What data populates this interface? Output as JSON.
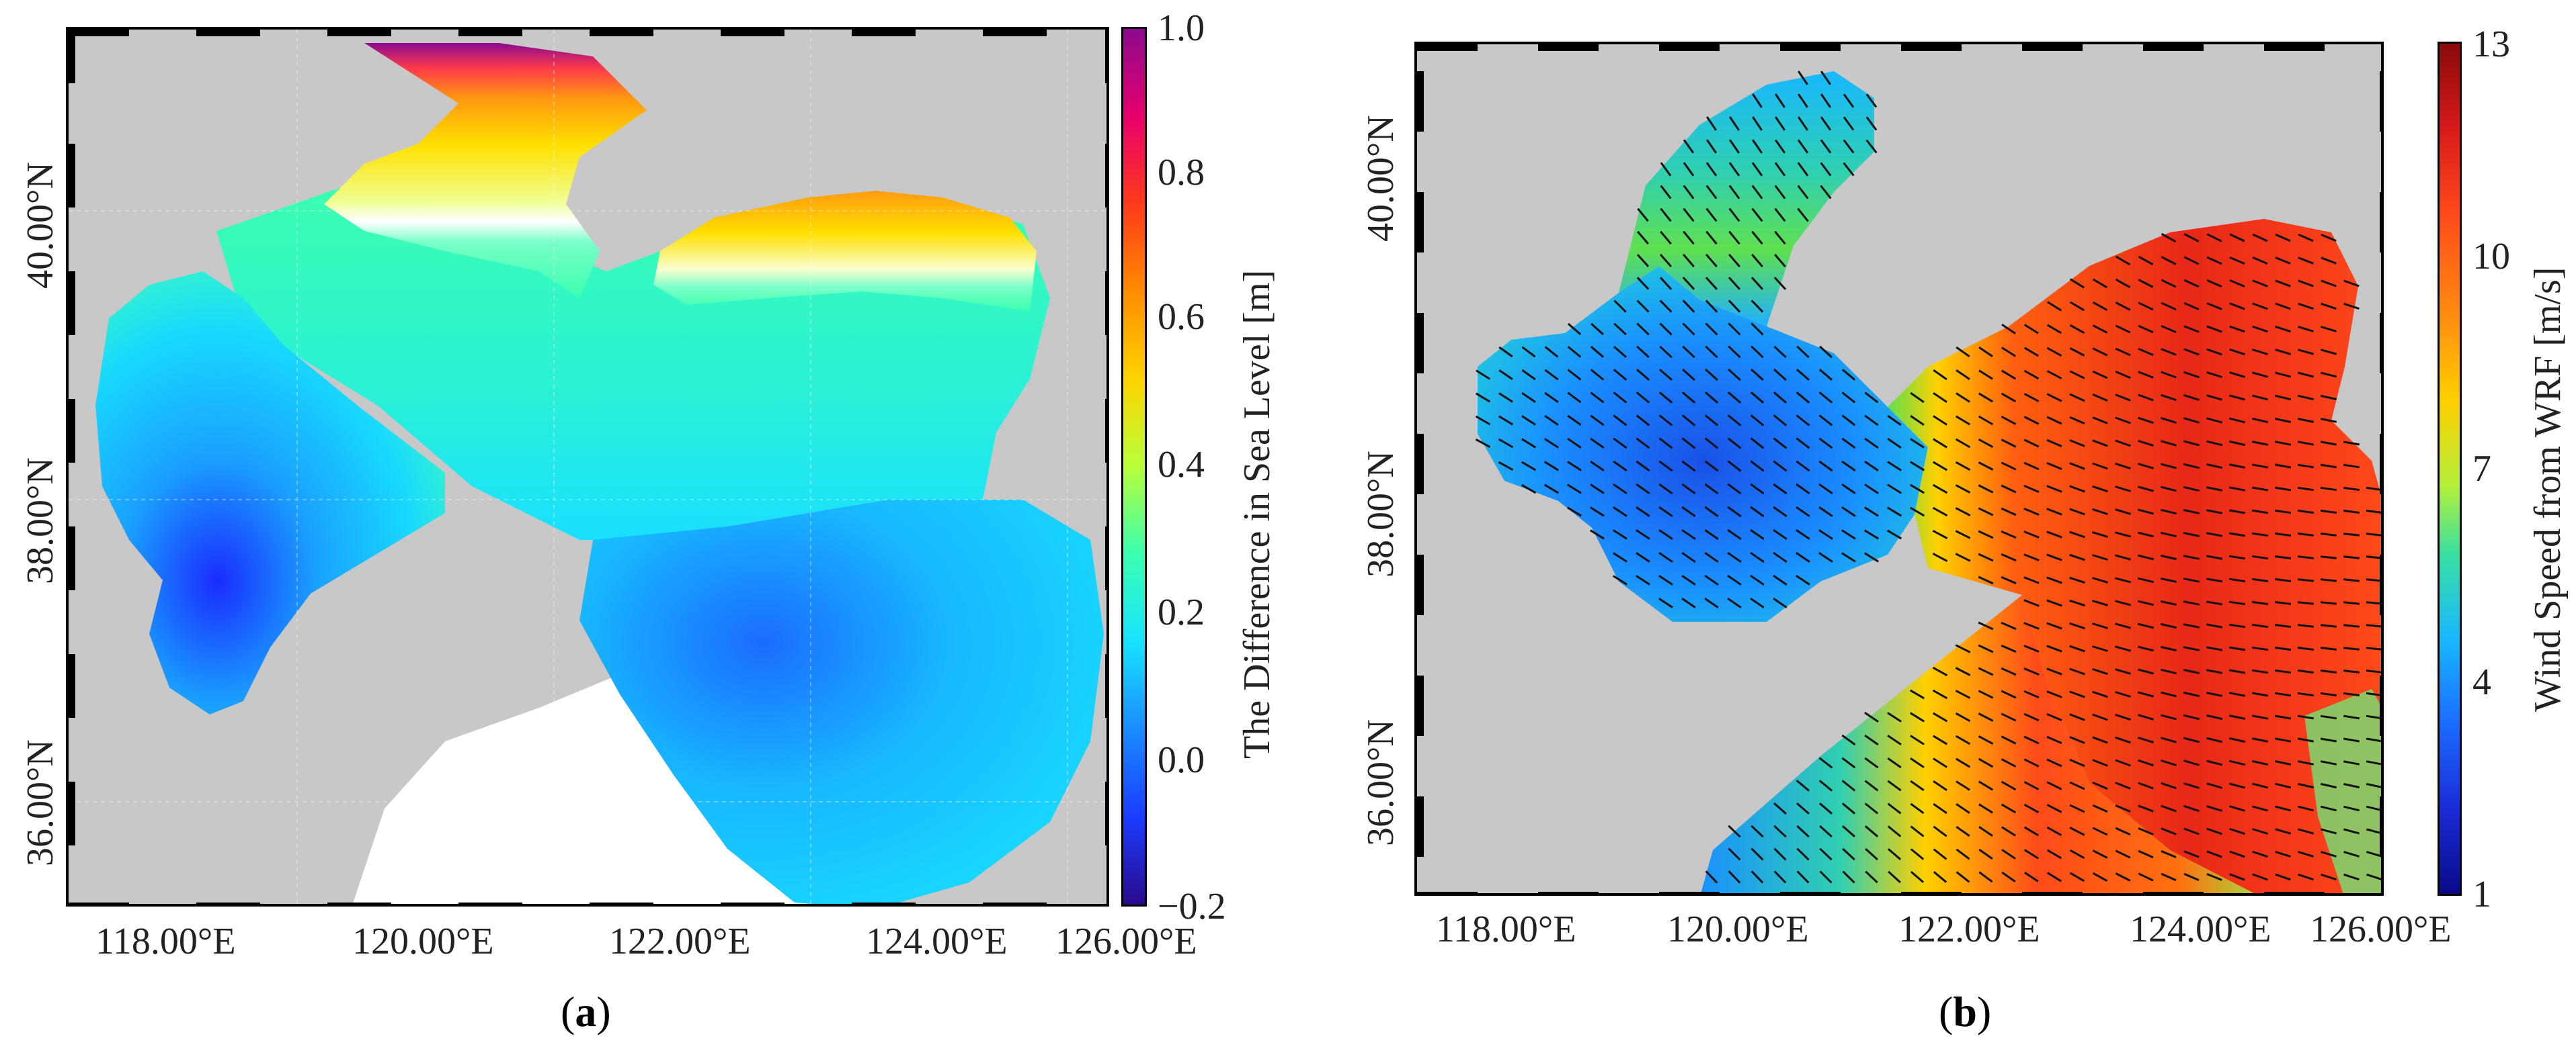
{
  "panel_a": {
    "caption_open": "(",
    "caption_letter": "a",
    "caption_close": ")",
    "lon_labels": [
      "118.00°E",
      "120.00°E",
      "122.00°E",
      "124.00°E",
      "126.00°E"
    ],
    "lat_labels": [
      "40.00°N",
      "38.00°N",
      "36.00°N"
    ],
    "colorbar": {
      "title": "The Difference in Sea Level [m]",
      "ticks": [
        "1.0",
        "0.8",
        "0.6",
        "0.4",
        "0.2",
        "0.0",
        "−0.2"
      ],
      "colors": [
        "#8b0a8e",
        "#e8006c",
        "#ff3a1a",
        "#ff8c00",
        "#ffd400",
        "#b7ff3a",
        "#3affb0",
        "#18e3ff",
        "#1a8cff",
        "#1a3cff",
        "#2a0a8c"
      ]
    }
  },
  "panel_b": {
    "caption_open": "(",
    "caption_letter": "b",
    "caption_close": ")",
    "lon_labels": [
      "118.00°E",
      "120.00°E",
      "122.00°E",
      "124.00°E",
      "126.00°E"
    ],
    "lat_labels": [
      "40.00°N",
      "38.00°N",
      "36.00°N"
    ],
    "colorbar": {
      "title": "Wind Speed from WRF [m/s]",
      "ticks": [
        "13",
        "10",
        "7",
        "4",
        "1"
      ],
      "colors": [
        "#8a0a0a",
        "#d81a1a",
        "#ff4a1a",
        "#ff8c10",
        "#ffd000",
        "#b4f03a",
        "#3ae0a0",
        "#18b8ff",
        "#1a6cff",
        "#1a2cd8",
        "#0a0a8a"
      ]
    }
  },
  "land_color": "#c8c8c8"
}
